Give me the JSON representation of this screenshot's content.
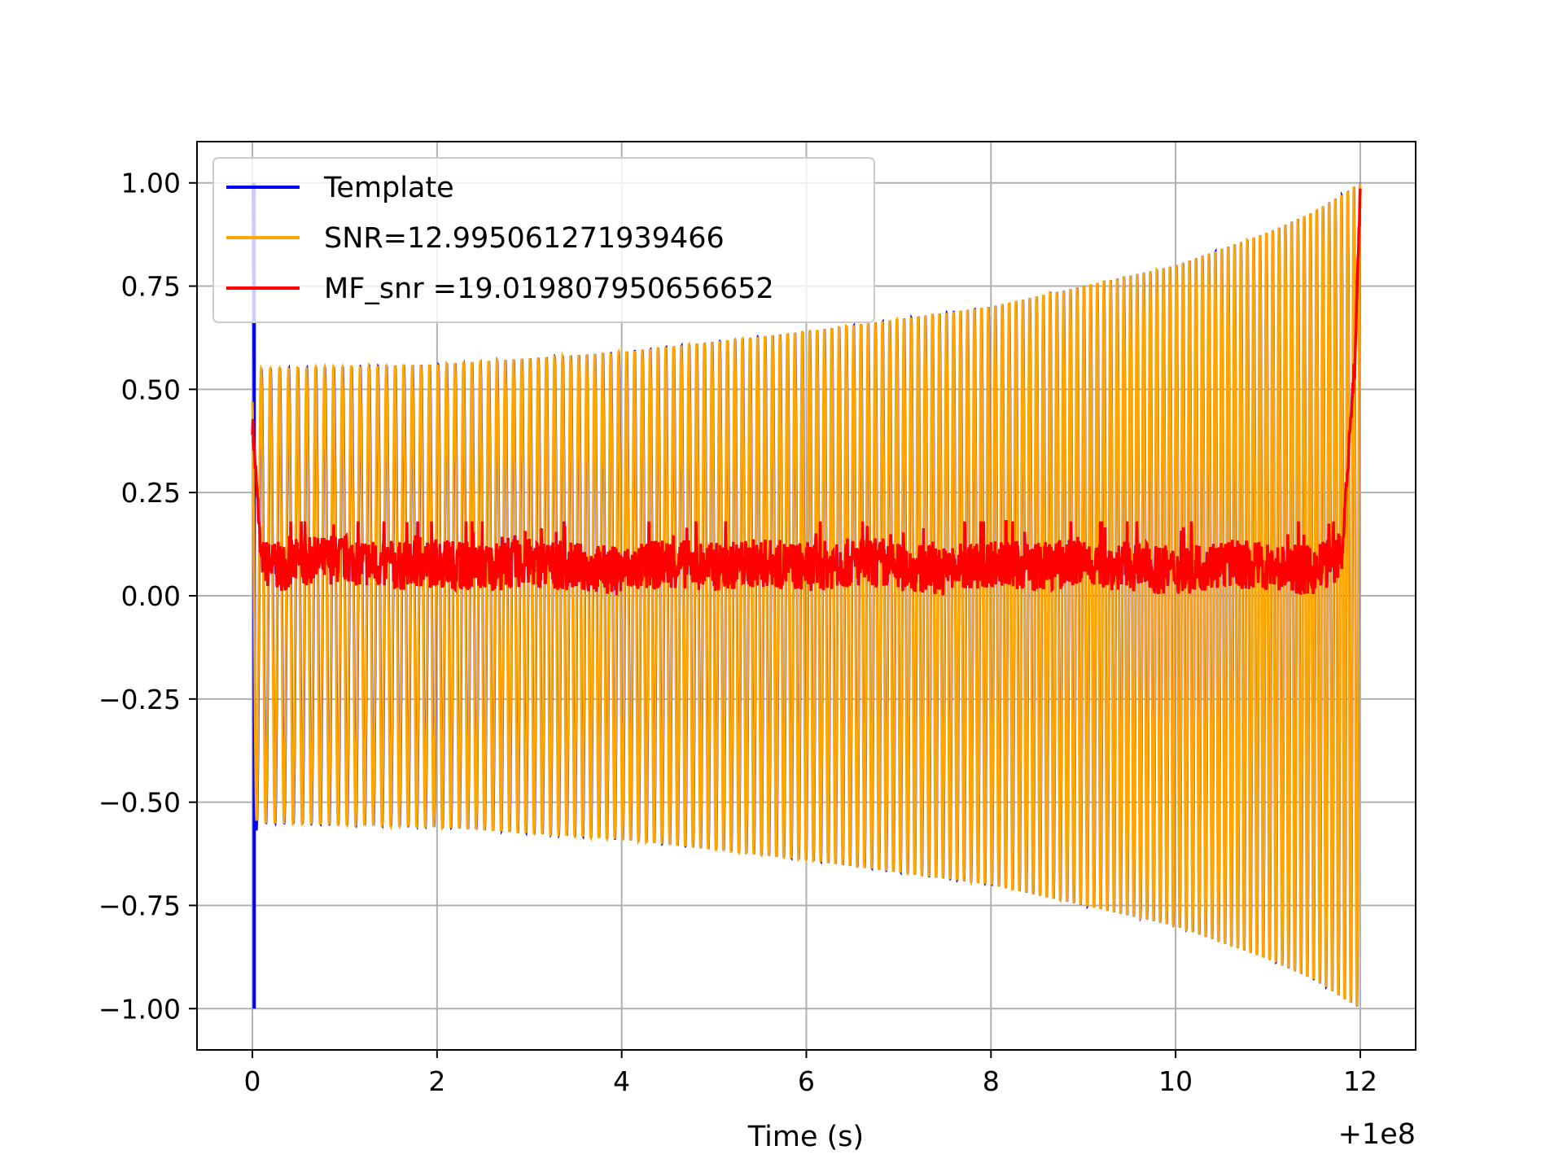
{
  "chart_data": {
    "type": "line",
    "xlabel": "Time (s)",
    "x_offset_label": "+1e8",
    "ylabel": "",
    "xlim": [
      -0.6,
      12.6
    ],
    "ylim": [
      -1.1,
      1.1
    ],
    "x_ticks": [
      0,
      2,
      4,
      6,
      8,
      10,
      12
    ],
    "x_tick_labels": [
      "0",
      "2",
      "4",
      "6",
      "8",
      "10",
      "12"
    ],
    "y_ticks": [
      1.0,
      0.75,
      0.5,
      0.25,
      0.0,
      -0.25,
      -0.5,
      -0.75,
      -1.0
    ],
    "y_tick_labels": [
      "1.00",
      "0.75",
      "0.50",
      "0.25",
      "0.00",
      "−0.25",
      "−0.50",
      "−0.75",
      "−1.00"
    ],
    "grid": true,
    "legend_position": "top-left",
    "series": [
      {
        "name": "Template",
        "color": "#0000ff",
        "description_kind": "chirp",
        "t_start": 0.0,
        "t_end": 12.0,
        "envelope_t": [
          0.0,
          0.05,
          2,
          4,
          6,
          8,
          10,
          11,
          11.5,
          12.0
        ],
        "envelope_amp": [
          1.0,
          0.55,
          0.56,
          0.59,
          0.64,
          0.7,
          0.8,
          0.88,
          0.93,
          1.0
        ],
        "cycles": 150
      },
      {
        "name": "SNR=12.995061271939466",
        "color": "#ffa500",
        "description_kind": "chirp",
        "t_start": 0.0,
        "t_end": 12.0,
        "envelope_t": [
          0.0,
          0.05,
          2,
          4,
          6,
          8,
          10,
          11,
          11.5,
          12.0
        ],
        "envelope_amp": [
          0.5,
          0.55,
          0.56,
          0.59,
          0.64,
          0.7,
          0.8,
          0.88,
          0.93,
          1.0
        ],
        "cycles": 150
      },
      {
        "name": "MF_snr =19.019807950656652",
        "color": "#ff0000",
        "description_kind": "noise",
        "x": [
          0.0,
          0.1,
          0.3,
          0.5,
          1.0,
          1.5,
          2.0,
          2.5,
          3.0,
          3.5,
          4.0,
          4.5,
          5.0,
          5.5,
          6.0,
          6.5,
          7.0,
          7.5,
          8.0,
          8.5,
          9.0,
          9.5,
          10.0,
          10.5,
          11.0,
          11.5,
          11.8,
          11.95,
          12.0
        ],
        "y": [
          0.42,
          0.08,
          0.07,
          0.08,
          0.09,
          0.07,
          0.08,
          0.07,
          0.08,
          0.07,
          0.06,
          0.08,
          0.07,
          0.08,
          0.07,
          0.08,
          0.07,
          0.06,
          0.08,
          0.07,
          0.08,
          0.07,
          0.06,
          0.08,
          0.07,
          0.06,
          0.1,
          0.6,
          1.0
        ],
        "band_low": 0.0,
        "band_high": 0.18
      }
    ]
  }
}
